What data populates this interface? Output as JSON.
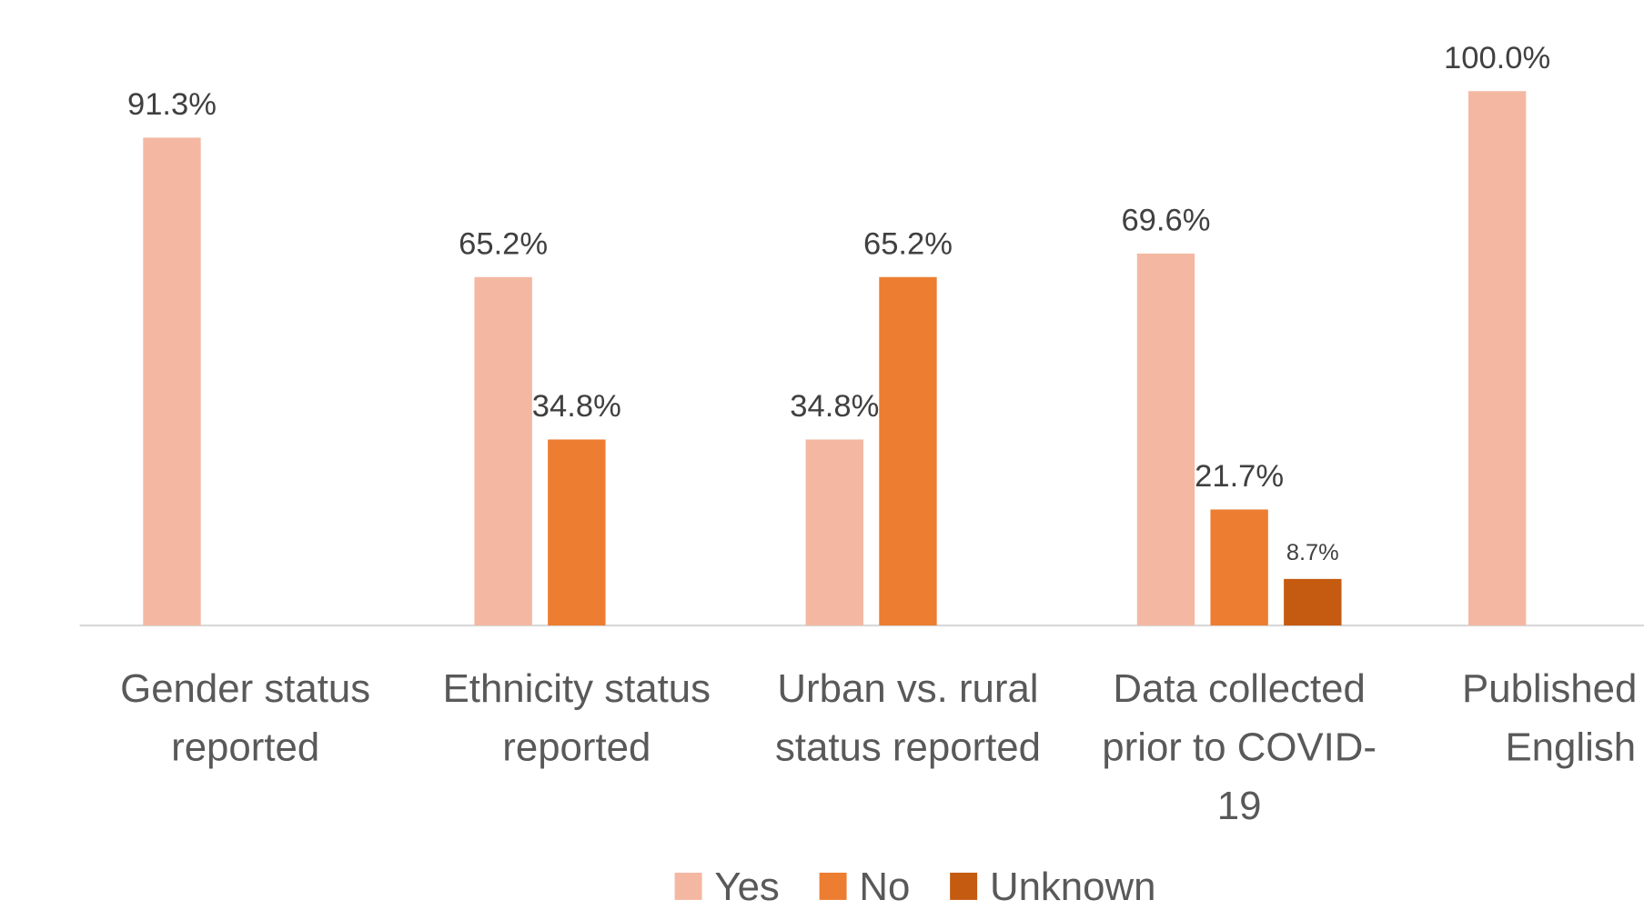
{
  "chart_data": {
    "type": "bar",
    "categories": [
      "Gender status reported",
      "Ethnicity status reported",
      "Urban vs. rural status reported",
      "Data collected prior to COVID-19",
      "Published in English"
    ],
    "ylim": [
      0,
      100
    ],
    "series": [
      {
        "name": "Yes",
        "color": "#F4B8A2",
        "values": [
          91.3,
          65.2,
          34.8,
          69.6,
          100.0
        ],
        "value_labels": [
          "91.3%",
          "65.2%",
          "34.8%",
          "69.6%",
          "100.0%"
        ]
      },
      {
        "name": "No",
        "color": "#ED7D31",
        "values": [
          null,
          34.8,
          65.2,
          21.7,
          null
        ],
        "value_labels": [
          null,
          "34.8%",
          "65.2%",
          "21.7%",
          null
        ]
      },
      {
        "name": "Unknown",
        "color": "#C55A11",
        "values": [
          null,
          null,
          null,
          8.7,
          null
        ],
        "value_labels": [
          null,
          null,
          null,
          "8.7%",
          null
        ]
      }
    ]
  }
}
